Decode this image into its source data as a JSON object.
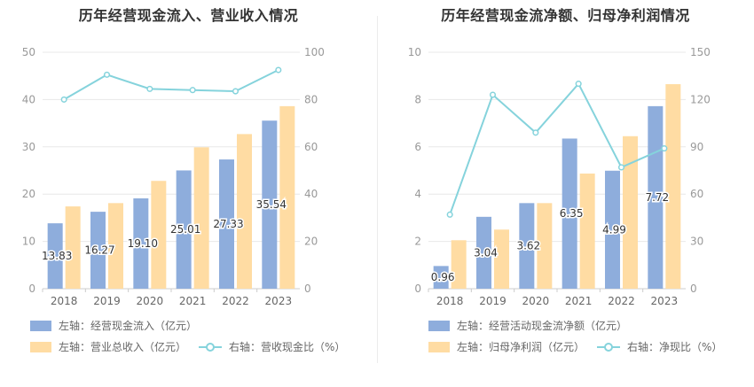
{
  "colors": {
    "bar1": "#8eaddc",
    "bar2": "#ffdca3",
    "line": "#85d3dc",
    "grid": "#e8e8e8",
    "axis": "#999999",
    "label": "#333333"
  },
  "chart_data": [
    {
      "type": "bar",
      "title": "历年经营现金流入、营业收入情况",
      "categories": [
        "2018",
        "2019",
        "2020",
        "2021",
        "2022",
        "2023"
      ],
      "series": [
        {
          "name": "左轴：经营现金流入（亿元）",
          "axis": "left",
          "kind": "bar",
          "values": [
            13.83,
            16.27,
            19.1,
            25.01,
            27.33,
            35.54
          ],
          "labels": [
            "13.83",
            "16.27",
            "19.10",
            "25.01",
            "27.33",
            "35.54"
          ]
        },
        {
          "name": "左轴：营业总收入（亿元）",
          "axis": "left",
          "kind": "bar",
          "values": [
            17.4,
            18.1,
            22.8,
            29.9,
            32.7,
            38.6
          ]
        },
        {
          "name": "右轴：营收现金比（%）",
          "axis": "right",
          "kind": "line",
          "values": [
            80,
            90.5,
            84.5,
            84,
            83.5,
            92.5
          ]
        }
      ],
      "left_axis": {
        "min": 0,
        "max": 50,
        "ticks": [
          "0",
          "10",
          "20",
          "30",
          "40",
          "50"
        ]
      },
      "right_axis": {
        "min": 0,
        "max": 100,
        "ticks": [
          "0",
          "20",
          "40",
          "60",
          "80",
          "100"
        ]
      }
    },
    {
      "type": "bar",
      "title": "历年经营现金流净额、归母净利润情况",
      "categories": [
        "2018",
        "2019",
        "2020",
        "2021",
        "2022",
        "2023"
      ],
      "series": [
        {
          "name": "左轴：经营活动现金流净额（亿元）",
          "axis": "left",
          "kind": "bar",
          "values": [
            0.96,
            3.04,
            3.62,
            6.35,
            4.99,
            7.72
          ],
          "labels": [
            "0.96",
            "3.04",
            "3.62",
            "6.35",
            "4.99",
            "7.72"
          ]
        },
        {
          "name": "左轴：归母净利润（亿元）",
          "axis": "left",
          "kind": "bar",
          "values": [
            2.05,
            2.5,
            3.62,
            4.87,
            6.45,
            8.65
          ]
        },
        {
          "name": "右轴：净现比（%）",
          "axis": "right",
          "kind": "line",
          "values": [
            47,
            123,
            99,
            130,
            77,
            89
          ]
        }
      ],
      "left_axis": {
        "min": 0,
        "max": 10,
        "ticks": [
          "0",
          "2",
          "4",
          "6",
          "8",
          "10"
        ]
      },
      "right_axis": {
        "min": 0,
        "max": 150,
        "ticks": [
          "0",
          "30",
          "60",
          "90",
          "120",
          "150"
        ]
      }
    }
  ]
}
